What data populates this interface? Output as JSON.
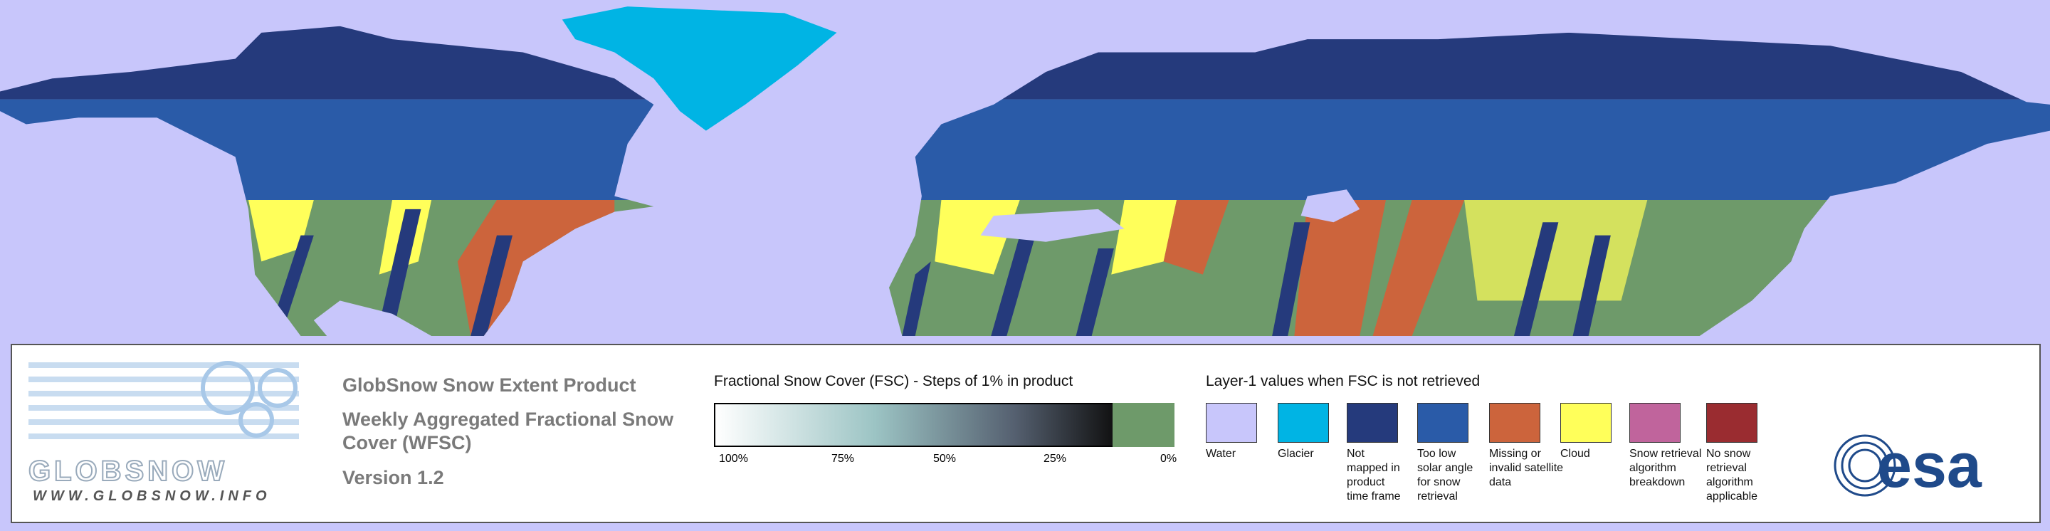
{
  "header": {
    "title": "GlobSnow Snow Extent Product",
    "subtitle_lines": [
      "Weekly Aggregated Fractional Snow",
      "Cover (WFSC)"
    ],
    "version": "Version 1.2"
  },
  "logo": {
    "name": "GLOBSNOW",
    "url": "WWW.GLOBSNOW.INFO"
  },
  "colorbar": {
    "title": "Fractional Snow Cover (FSC) - Steps of 1% in product",
    "ticks": [
      "100%",
      "75%",
      "50%",
      "25%",
      "0%"
    ]
  },
  "layer1": {
    "title": "Layer-1 values when FSC is not retrieved",
    "items": [
      {
        "lines": [
          "Water"
        ],
        "color": "#c8c6fb"
      },
      {
        "lines": [
          "Glacier"
        ],
        "color": "#00b4e4"
      },
      {
        "lines": [
          "Not",
          "mapped in",
          "product",
          "time frame"
        ],
        "color": "#253a7c"
      },
      {
        "lines": [
          "Too low",
          "solar angle",
          "for snow",
          "retrieval"
        ],
        "color": "#2a5ba8"
      },
      {
        "lines": [
          "Missing or",
          "invalid satellite",
          "data"
        ],
        "color": "#cc643c"
      },
      {
        "lines": [
          "Cloud"
        ],
        "color": "#ffff5a"
      },
      {
        "lines": [
          "Snow retrieval",
          "algorithm",
          "breakdown"
        ],
        "color": "#c0649c"
      },
      {
        "lines": [
          "No snow",
          "retrieval",
          "algorithm",
          "applicable"
        ],
        "color": "#9a2c30"
      }
    ]
  },
  "agency": {
    "name": "esa"
  }
}
